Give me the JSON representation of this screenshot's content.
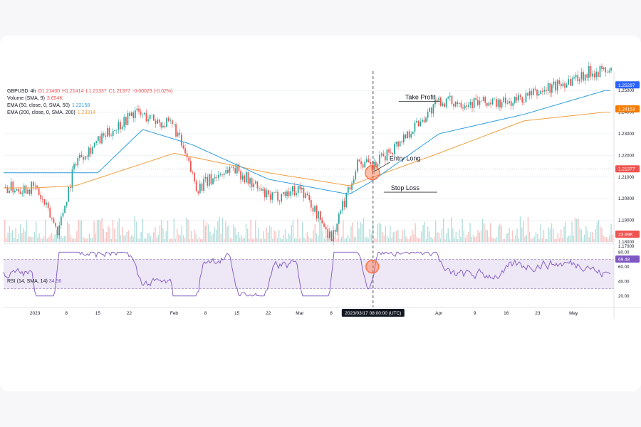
{
  "legend": {
    "symbol": "GBPUSD",
    "interval": "4h",
    "open": "O1.21400",
    "high": "H1.21414",
    "low": "L1.21337",
    "close": "C1.21377",
    "change": "-0.00023 (-0.02%)",
    "volume_label": "Volume (SMA, 9)",
    "volume_value": "3.654K",
    "ema50_label": "EMA (50, close, 0, SMA, 50)",
    "ema50_value": "1.22158",
    "ema200_label": "EMA (200, close, 0, SMA, 200)",
    "ema200_value": "1.23314",
    "rsi_label": "RSI (14, SMA, 14)",
    "rsi_value": "34.56"
  },
  "price_scale": {
    "ticks": [
      "1.25000",
      "1.24000",
      "1.23000",
      "1.22000",
      "1.21000",
      "1.20000",
      "1.19000",
      "1.18000",
      "1.17000"
    ],
    "current_price": "1.25297",
    "ema200_tag": "1.24153",
    "ema50_tag": "1.21377",
    "volume_tag": "23.69K"
  },
  "rsi_scale": {
    "ticks": [
      "80.00",
      "60.00",
      "40.00",
      "20.00"
    ],
    "current": "69.48"
  },
  "time_axis": {
    "labels": [
      "2023",
      "8",
      "15",
      "22",
      "Feb",
      "8",
      "15",
      "22",
      "Mar",
      "8",
      "Apr",
      "9",
      "16",
      "23",
      "May"
    ],
    "crosshair_label": "2023/03/17 08:00:00 (UTC)"
  },
  "annotations": {
    "take_profit": "Take Profit",
    "entry_long": "Entry Long",
    "stop_loss": "Stop Loss"
  },
  "colors": {
    "up": "#26a69a",
    "down": "#ef5350",
    "ema50": "#2f9ede",
    "ema200": "#f0a044",
    "rsi": "#7e57c2",
    "rsi_band": "#ede7f6",
    "price_tag": "#2962ff",
    "ema200_tag": "#f57c00",
    "ema50_tag": "#ef5350",
    "circle": "#ff7043"
  },
  "chart_data": {
    "type": "candlestick",
    "symbol": "GBPUSD",
    "ylim": [
      1.18,
      1.255
    ],
    "rsi_ylim": [
      20,
      80
    ],
    "rsi_bands": [
      70,
      30
    ],
    "key_points": [
      {
        "date": "2023-01-01",
        "price": 1.205
      },
      {
        "date": "2023-01-06",
        "price": 1.185
      },
      {
        "date": "2023-01-10",
        "price": 1.218
      },
      {
        "date": "2023-01-23",
        "price": 1.24
      },
      {
        "date": "2023-02-01",
        "price": 1.233
      },
      {
        "date": "2023-02-06",
        "price": 1.205
      },
      {
        "date": "2023-02-14",
        "price": 1.215
      },
      {
        "date": "2023-02-22",
        "price": 1.2
      },
      {
        "date": "2023-03-01",
        "price": 1.205
      },
      {
        "date": "2023-03-08",
        "price": 1.182
      },
      {
        "date": "2023-03-14",
        "price": 1.218
      },
      {
        "date": "2023-03-17",
        "price": 1.214
      },
      {
        "date": "2023-04-01",
        "price": 1.245
      },
      {
        "date": "2023-04-16",
        "price": 1.244
      },
      {
        "date": "2023-04-23",
        "price": 1.249
      },
      {
        "date": "2023-05-05",
        "price": 1.259
      }
    ],
    "ema50_points": [
      {
        "date": "2023-01-01",
        "price": 1.212
      },
      {
        "date": "2023-01-15",
        "price": 1.212
      },
      {
        "date": "2023-01-25",
        "price": 1.232
      },
      {
        "date": "2023-02-05",
        "price": 1.225
      },
      {
        "date": "2023-02-22",
        "price": 1.209
      },
      {
        "date": "2023-03-12",
        "price": 1.202
      },
      {
        "date": "2023-03-17",
        "price": 1.208
      },
      {
        "date": "2023-04-01",
        "price": 1.23
      },
      {
        "date": "2023-04-20",
        "price": 1.239
      },
      {
        "date": "2023-05-08",
        "price": 1.25
      }
    ],
    "ema200_points": [
      {
        "date": "2023-01-01",
        "price": 1.205
      },
      {
        "date": "2023-01-10",
        "price": 1.206
      },
      {
        "date": "2023-02-01",
        "price": 1.221
      },
      {
        "date": "2023-02-22",
        "price": 1.212
      },
      {
        "date": "2023-03-12",
        "price": 1.206
      },
      {
        "date": "2023-04-01",
        "price": 1.221
      },
      {
        "date": "2023-04-20",
        "price": 1.236
      },
      {
        "date": "2023-05-08",
        "price": 1.24
      }
    ],
    "crosshair_date": "2023-03-17 08:00",
    "entry_long": 1.213,
    "take_profit": 1.245,
    "stop_loss": 1.203
  }
}
